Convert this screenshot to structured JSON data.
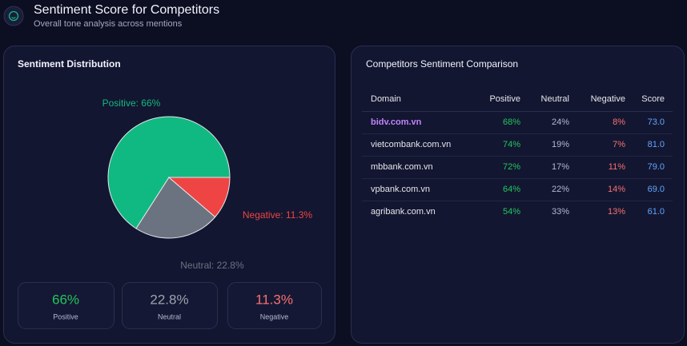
{
  "header": {
    "title": "Sentiment Score for Competitors",
    "subtitle": "Overall tone analysis across mentions"
  },
  "chart_data": {
    "type": "pie",
    "title": "Sentiment Distribution",
    "values": [
      66,
      22.8,
      11.3
    ],
    "value_labels": [
      "Positive: 66%",
      "Neutral: 22.8%",
      "Negative: 11.3%"
    ],
    "colors": [
      "#10b981",
      "#6b7280",
      "#ef4444"
    ]
  },
  "summary_cards": [
    {
      "value": "66%",
      "label": "Positive"
    },
    {
      "value": "22.8%",
      "label": "Neutral"
    },
    {
      "value": "11.3%",
      "label": "Negative"
    }
  ],
  "table": {
    "title": "Competitors Sentiment Comparison",
    "header": [
      "Domain",
      "Positive",
      "Neutral",
      "Negative",
      "Score"
    ],
    "rows": [
      [
        "bidv.com.vn",
        "68%",
        "24%",
        "8%",
        "73.0"
      ],
      [
        "vietcombank.com.vn",
        "74%",
        "19%",
        "7%",
        "81.0"
      ],
      [
        "mbbank.com.vn",
        "72%",
        "17%",
        "11%",
        "79.0"
      ],
      [
        "vpbank.com.vn",
        "64%",
        "22%",
        "14%",
        "69.0"
      ],
      [
        "agribank.com.vn",
        "54%",
        "33%",
        "13%",
        "61.0"
      ]
    ]
  }
}
